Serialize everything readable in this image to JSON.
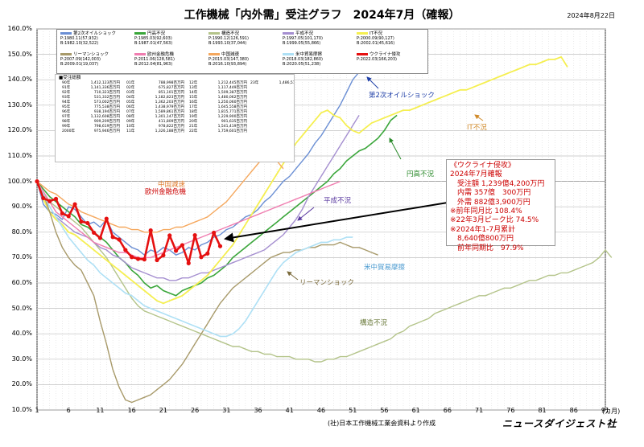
{
  "title": "工作機械「内外需」受注グラフ　2024年7月（確報）",
  "date": "2024年8月22日",
  "source": "(社)日本工作機械工業会資料より作成",
  "brand": "ニュースダイジェスト社",
  "x_unit": "(カ月)",
  "chart_data": {
    "type": "line",
    "xlim": [
      1,
      91
    ],
    "ylim": [
      10,
      160
    ],
    "yticks": [
      "10.0%",
      "20.0%",
      "30.0%",
      "40.0%",
      "50.0%",
      "60.0%",
      "70.0%",
      "80.0%",
      "90.0%",
      "100.0%",
      "110.0%",
      "120.0%",
      "130.0%",
      "140.0%",
      "150.0%",
      "160.0%"
    ],
    "xticks": [
      "1",
      "6",
      "11",
      "16",
      "21",
      "26",
      "31",
      "36",
      "41",
      "46",
      "51",
      "56",
      "61",
      "66",
      "71",
      "76",
      "81",
      "86",
      "91"
    ],
    "series": [
      {
        "name": "第2次オイルショック",
        "color": "#6b8fd4",
        "width": 1.4,
        "x0": 1,
        "values": [
          100,
          91,
          88,
          87,
          85,
          90,
          89,
          86,
          83,
          84,
          82,
          85,
          80,
          78,
          76,
          74,
          73,
          71,
          73,
          72,
          74,
          73,
          71,
          72,
          74,
          73,
          75,
          76,
          78,
          79,
          81,
          82,
          84,
          86,
          87,
          89,
          92,
          94,
          97,
          100,
          102,
          105,
          108,
          111,
          115,
          118,
          122,
          126,
          130,
          135,
          140,
          143
        ]
      },
      {
        "name": "円高不況",
        "color": "#3aa63a",
        "width": 1.6,
        "x0": 1,
        "values": [
          100,
          97,
          94,
          92,
          90,
          88,
          86,
          83,
          82,
          80,
          78,
          76,
          73,
          70,
          68,
          65,
          63,
          60,
          58,
          59,
          57,
          56,
          55,
          57,
          58,
          59,
          60,
          62,
          63,
          65,
          67,
          70,
          72,
          74,
          76,
          78,
          80,
          82,
          84,
          86,
          88,
          90,
          92,
          94,
          96,
          98,
          100,
          103,
          105,
          108,
          110,
          112,
          113,
          115,
          117,
          120,
          124,
          126
        ]
      },
      {
        "name": "構造不況",
        "color": "#b4c48a",
        "width": 1.4,
        "x0": 1,
        "values": [
          100,
          95,
          92,
          90,
          88,
          86,
          84,
          82,
          79,
          76,
          73,
          70,
          66,
          62,
          58,
          54,
          51,
          49,
          48,
          47,
          46,
          45,
          44,
          43,
          42,
          41,
          40,
          39,
          38,
          37,
          36,
          35,
          35,
          34,
          33,
          33,
          32,
          32,
          31,
          31,
          31,
          30,
          30,
          30,
          29,
          29,
          30,
          30,
          31,
          31,
          32,
          33,
          34,
          35,
          36,
          37,
          38,
          40,
          41,
          43,
          44,
          45,
          46,
          48,
          49,
          50,
          51,
          52,
          53,
          54,
          55,
          55,
          56,
          57,
          58,
          58,
          59,
          60,
          61,
          61,
          62,
          63,
          63,
          64,
          64,
          65,
          66,
          67,
          68,
          70,
          73,
          70
        ]
      },
      {
        "name": "平成不況",
        "color": "#a58fd0",
        "width": 1.4,
        "x0": 1,
        "values": [
          100,
          94,
          90,
          86,
          84,
          82,
          80,
          79,
          78,
          76,
          74,
          73,
          71,
          70,
          68,
          66,
          65,
          64,
          63,
          62,
          62,
          61,
          61,
          62,
          62,
          63,
          64,
          64,
          65,
          66,
          67,
          68,
          69,
          70,
          71,
          72,
          73,
          75,
          77,
          79,
          82,
          85,
          89,
          94,
          98,
          102,
          106,
          110,
          114,
          118,
          122,
          126
        ]
      },
      {
        "name": "IT不況",
        "color": "#f5ef50",
        "width": 1.8,
        "x0": 1,
        "values": [
          100,
          93,
          88,
          85,
          83,
          80,
          79,
          77,
          75,
          73,
          71,
          69,
          67,
          65,
          63,
          61,
          59,
          57,
          55,
          53,
          52,
          53,
          54,
          55,
          57,
          59,
          61,
          63,
          66,
          69,
          72,
          75,
          79,
          83,
          87,
          91,
          95,
          99,
          103,
          107,
          111,
          115,
          118,
          121,
          124,
          127,
          128,
          126,
          125,
          122,
          120,
          119,
          121,
          123,
          124,
          125,
          126,
          127,
          128,
          128,
          129,
          130,
          131,
          132,
          133,
          134,
          135,
          136,
          136,
          137,
          138,
          139,
          140,
          141,
          142,
          143,
          144,
          145,
          146,
          146,
          147,
          148,
          148,
          149,
          145
        ]
      },
      {
        "name": "リーマンショック",
        "color": "#a89a6a",
        "width": 1.4,
        "x0": 1,
        "values": [
          100,
          95,
          88,
          80,
          74,
          70,
          67,
          65,
          60,
          55,
          45,
          36,
          26,
          19,
          14,
          13,
          14,
          15,
          16,
          18,
          20,
          22,
          25,
          28,
          32,
          36,
          40,
          44,
          48,
          52,
          55,
          58,
          60,
          62,
          64,
          66,
          68,
          70,
          71,
          72,
          72,
          73,
          73,
          74,
          74,
          75,
          75,
          75,
          76,
          75,
          74,
          74,
          73,
          72,
          71
        ]
      },
      {
        "name": "欧州金融危機",
        "color": "#f07db0",
        "width": 1.4,
        "x0": 1,
        "values": [
          100,
          96,
          92,
          88,
          86,
          84,
          82,
          80,
          78,
          76,
          75,
          74,
          73,
          72,
          72,
          71,
          70,
          70,
          70,
          71,
          72,
          73,
          74,
          75,
          76,
          77,
          78,
          79,
          80,
          81,
          82,
          83,
          84,
          85,
          86,
          87,
          88,
          89,
          90,
          91,
          92,
          93,
          94,
          95,
          96,
          97,
          98,
          99,
          100
        ]
      },
      {
        "name": "中国減速",
        "color": "#f5a85e",
        "width": 1.4,
        "x0": 1,
        "values": [
          100,
          98,
          96,
          95,
          93,
          91,
          90,
          88,
          87,
          86,
          85,
          84,
          83,
          82,
          82,
          81,
          81,
          80,
          80,
          80,
          81,
          81,
          82,
          82,
          83,
          84,
          85,
          86,
          88,
          90,
          92,
          95,
          98,
          101,
          104,
          107,
          110,
          112,
          108,
          105
        ]
      },
      {
        "name": "米中貿易摩擦",
        "color": "#aee0f5",
        "width": 1.6,
        "x0": 1,
        "values": [
          100,
          95,
          90,
          86,
          82,
          78,
          75,
          72,
          69,
          67,
          64,
          62,
          60,
          58,
          56,
          55,
          53,
          51,
          50,
          49,
          48,
          47,
          46,
          45,
          44,
          43,
          42,
          41,
          40,
          39,
          39,
          40,
          42,
          45,
          49,
          53,
          57,
          61,
          65,
          68,
          70,
          72,
          73,
          74,
          75,
          76,
          76,
          77,
          77,
          78,
          78
        ]
      },
      {
        "name": "ウクライナ侵攻",
        "color": "#e51010",
        "width": 2.6,
        "x0": 1,
        "values": [
          100,
          93.4,
          92.2,
          93.1,
          87.4,
          86.3,
          91.0,
          84.2,
          83.6,
          79.8,
          77.7,
          85.3,
          78.1,
          77.1,
          73.0,
          70.2,
          69.5,
          69.3,
          80.7,
          69.0,
          70.9,
          78.7,
          72.7,
          74.9,
          67.8,
          78.8,
          70.2,
          71.6,
          79.8,
          74.5
        ]
      }
    ]
  },
  "legend": [
    {
      "name": "第2次オイルショック",
      "p": "P:1980.11(57,932)",
      "b": "B:1982.10(32,522)"
    },
    {
      "name": "円高不況",
      "p": "P:1985.03(92,603)",
      "b": "B:1987.01(47,563)"
    },
    {
      "name": "構造不況",
      "p": "P:1990.12(126,591)",
      "b": "B:1993.10(37,044)"
    },
    {
      "name": "平成不況",
      "p": "P:1997.05(101,170)",
      "b": "B:1999.05(55,866)"
    },
    {
      "name": "IT不況",
      "p": "P:2000.09(90,127)",
      "b": "B:2002.01(45,616)"
    },
    {
      "name": "リーマンショック",
      "p": "P:2007.09(142,003)",
      "b": "B:2009.01(19,037)"
    },
    {
      "name": "欧州金融危機",
      "p": "P:2011.06(128,581)",
      "b": "B:2012.04(81,963)"
    },
    {
      "name": "中国減速",
      "p": "P:2015.03(147,380)",
      "b": "B:2016.10(93,894)"
    },
    {
      "name": "米中貿易摩擦",
      "p": "P:2018.03(182,860)",
      "b": "B:2020.05(51,238)"
    },
    {
      "name": "ウクライナ侵攻",
      "p": "P:2022.03(166,203)",
      "b": ""
    }
  ],
  "totals": {
    "heading": "■受注総額",
    "columns": [
      [
        [
          "90年",
          "1,412,123百万円"
        ],
        [
          "91年",
          "1,141,336百万円"
        ],
        [
          "92年",
          "710,323百万円"
        ],
        [
          "93年",
          "531,332百万円"
        ],
        [
          "94年",
          "573,002百万円"
        ],
        [
          "95年",
          "775,538百万円"
        ],
        [
          "96年",
          "938,194百万円"
        ],
        [
          "97年",
          "1,132,608百万円"
        ],
        [
          "98年",
          "909,209百万円"
        ],
        [
          "99年",
          "798,619百万円"
        ],
        [
          "2000年",
          "975,946百万円"
        ]
      ],
      [
        [
          "01年",
          "788,998百万円"
        ],
        [
          "02年",
          "675,827百万円"
        ],
        [
          "03年",
          "851,101百万円"
        ],
        [
          "04年",
          "1,182,823百万円"
        ],
        [
          "05年",
          "1,362,203百万円"
        ],
        [
          "06年",
          "1,438,979百万円"
        ],
        [
          "07年",
          "1,589,861百万円"
        ],
        [
          "08年",
          "1,301,147百万円"
        ],
        [
          "09年",
          "411,809百万円"
        ],
        [
          "10年",
          "978,822百万円"
        ],
        [
          "11年",
          "1,326,188百万円"
        ]
      ],
      [
        [
          "12年",
          "1,212,445百万円"
        ],
        [
          "13年",
          "1,117,449百万円"
        ],
        [
          "14年",
          "1,509,387百万円"
        ],
        [
          "15年",
          "1,480,062百万円"
        ],
        [
          "16年",
          "1,250,060百万円"
        ],
        [
          "17年",
          "1,645,558百万円"
        ],
        [
          "18年",
          "1,815,771百万円"
        ],
        [
          "19年",
          "1,229,900百万円"
        ],
        [
          "20年",
          "901,635百万円"
        ],
        [
          "21年",
          "1,541,419百万円"
        ],
        [
          "22年",
          "1,759,601百万円"
        ]
      ],
      [
        [
          "23年",
          "1,486,515百万円"
        ]
      ]
    ]
  },
  "annotation": {
    "lines": [
      "《ウクライナ侵攻》",
      "2024年7月確報",
      "　受注額 1,239億4,200万円",
      "　内需 357億　300万円",
      "　外需 882億3,900万円",
      "※前年同月比 108.4%",
      "※22年3月ピーク比 74.5%",
      "※2024年1-7月累計",
      "　8,640億800万円",
      "　前年同期比　97.9%"
    ]
  },
  "chart_labels": [
    {
      "text": "第2次オイルショック",
      "color": "#1f3fa8"
    },
    {
      "text": "IT不況",
      "color": "#d08a2a"
    },
    {
      "text": "円高不況",
      "color": "#2a8a2a"
    },
    {
      "text": "中国減速",
      "color": "#e07a2a"
    },
    {
      "text": "欧州金融危機",
      "color": "#cc0000"
    },
    {
      "text": "平成不況",
      "color": "#5a3aa0"
    },
    {
      "text": "米中貿易摩擦",
      "color": "#4a9ad0"
    },
    {
      "text": "リーマンショック",
      "color": "#7a6a3a"
    },
    {
      "text": "構造不況",
      "color": "#6a7a3a"
    }
  ]
}
